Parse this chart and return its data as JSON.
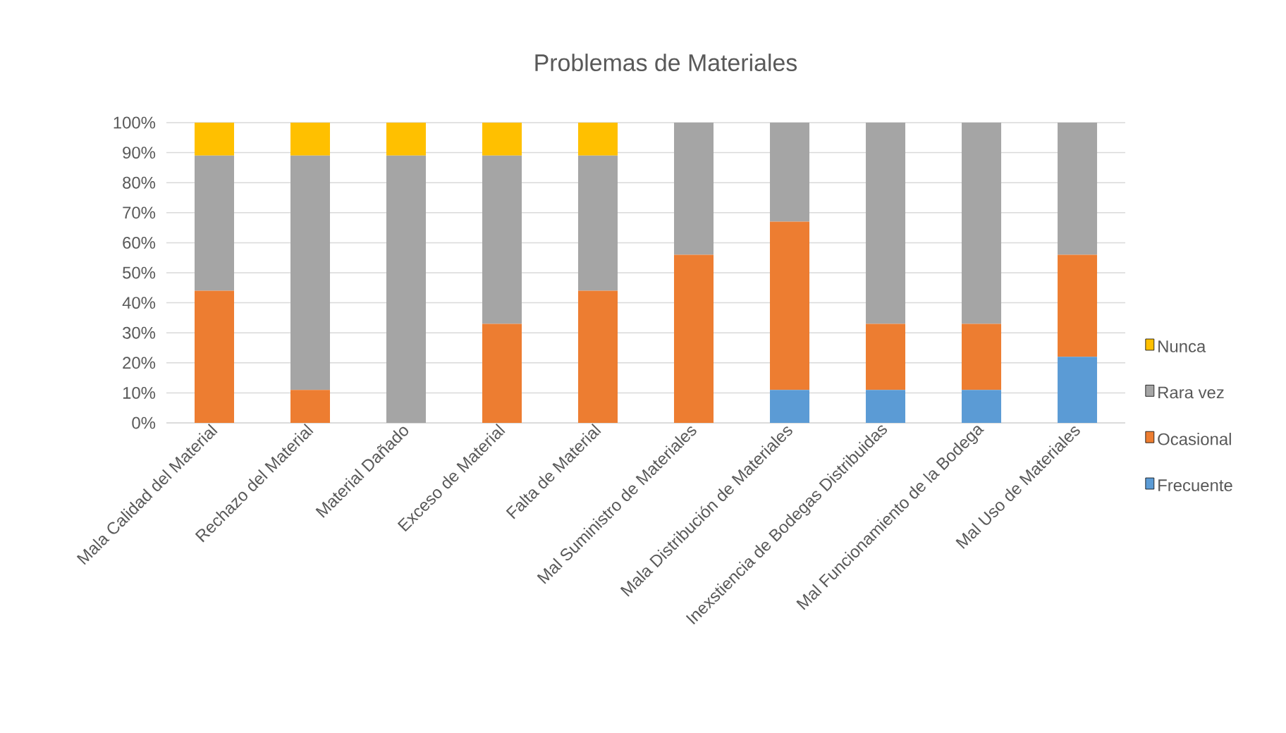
{
  "chart_data": {
    "type": "bar",
    "title": "Problemas de Materiales",
    "categories": [
      "Mala Calidad del Material",
      "Rechazo del Material",
      "Material Dañado",
      "Exceso de Material",
      "Falta de Material",
      "Mal Suministro de Materiales",
      "Mala Distribución de Materiales",
      "Inexstiencia de Bodegas Distribuidas",
      "Mal Funcionamiento de la Bodega",
      "Mal Uso de Materiales"
    ],
    "series": [
      {
        "name": "Frecuente",
        "color": "#5b9bd5",
        "values": [
          0,
          0,
          0,
          0,
          0,
          0,
          11,
          11,
          11,
          22
        ]
      },
      {
        "name": "Ocasional",
        "color": "#ed7d31",
        "values": [
          44,
          11,
          0,
          33,
          44,
          56,
          56,
          22,
          22,
          34
        ]
      },
      {
        "name": "Rara vez",
        "color": "#a5a5a5",
        "values": [
          45,
          78,
          89,
          56,
          45,
          44,
          33,
          67,
          67,
          44
        ]
      },
      {
        "name": "Nunca",
        "color": "#ffc000",
        "values": [
          11,
          11,
          11,
          11,
          11,
          0,
          0,
          0,
          0,
          0
        ]
      }
    ],
    "stacked": true,
    "ylim": [
      0,
      100
    ],
    "yticks": [
      {
        "value": 0,
        "label": "0%"
      },
      {
        "value": 10,
        "label": "10%"
      },
      {
        "value": 20,
        "label": "20%"
      },
      {
        "value": 30,
        "label": "30%"
      },
      {
        "value": 40,
        "label": "40%"
      },
      {
        "value": 50,
        "label": "50%"
      },
      {
        "value": 60,
        "label": "60%"
      },
      {
        "value": 70,
        "label": "70%"
      },
      {
        "value": 80,
        "label": "80%"
      },
      {
        "value": 90,
        "label": "90%"
      },
      {
        "value": 100,
        "label": "100%"
      }
    ],
    "grid": "y",
    "legend": "right"
  }
}
